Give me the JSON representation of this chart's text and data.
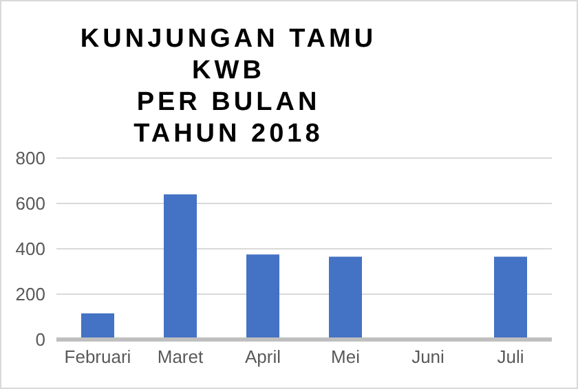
{
  "chart_data": {
    "type": "bar",
    "title": "KUNJUNGAN TAMU KWB\nPER BULAN\nTAHUN 2018",
    "categories": [
      "Februari",
      "Maret",
      "April",
      "Mei",
      "Juni",
      "Juli"
    ],
    "values": [
      115,
      640,
      375,
      365,
      0,
      365
    ],
    "color": "#4472c4",
    "ylim": [
      0,
      800
    ],
    "yticks": [
      0,
      200,
      400,
      600,
      800
    ],
    "grid": "y",
    "legend": false
  }
}
